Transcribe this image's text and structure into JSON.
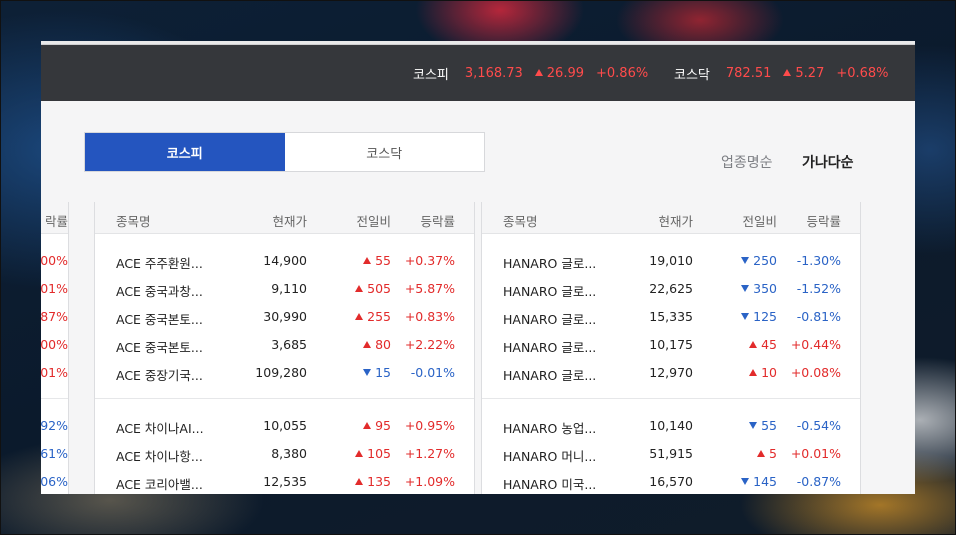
{
  "ticker": [
    {
      "name": "코스피",
      "value": "3,168.73",
      "change": "26.99",
      "rate": "+0.86%"
    },
    {
      "name": "코스닥",
      "value": "782.51",
      "change": "5.27",
      "rate": "+0.68%"
    }
  ],
  "tabs": [
    {
      "label": "코스피",
      "active": true
    },
    {
      "label": "코스닥",
      "active": false
    }
  ],
  "sort": {
    "industry": "업종명순",
    "alpha": "가나다순"
  },
  "left_partial": {
    "header": "락률",
    "group1": [
      {
        "rate": ".00%",
        "dir": "up"
      },
      {
        "rate": ".01%",
        "dir": "up"
      },
      {
        "rate": ".87%",
        "dir": "up"
      },
      {
        "rate": ".00%",
        "dir": "up"
      },
      {
        "rate": ".01%",
        "dir": "up"
      }
    ],
    "group2": [
      {
        "rate": ".92%",
        "dir": "down"
      },
      {
        "rate": ".61%",
        "dir": "down"
      },
      {
        "rate": ".06%",
        "dir": "down"
      }
    ]
  },
  "columns": {
    "name": "종목명",
    "price": "현재가",
    "change": "전일비",
    "rate": "등락률"
  },
  "panel_mid": {
    "group1": [
      {
        "name": "ACE 주주환원...",
        "price": "14,900",
        "change": "55",
        "rate": "+0.37%",
        "dir": "up"
      },
      {
        "name": "ACE 중국과창...",
        "price": "9,110",
        "change": "505",
        "rate": "+5.87%",
        "dir": "up"
      },
      {
        "name": "ACE 중국본토...",
        "price": "30,990",
        "change": "255",
        "rate": "+0.83%",
        "dir": "up"
      },
      {
        "name": "ACE 중국본토...",
        "price": "3,685",
        "change": "80",
        "rate": "+2.22%",
        "dir": "up"
      },
      {
        "name": "ACE 중장기국...",
        "price": "109,280",
        "change": "15",
        "rate": "-0.01%",
        "dir": "down"
      }
    ],
    "group2": [
      {
        "name": "ACE 차이나AI...",
        "price": "10,055",
        "change": "95",
        "rate": "+0.95%",
        "dir": "up"
      },
      {
        "name": "ACE 차이나항...",
        "price": "8,380",
        "change": "105",
        "rate": "+1.27%",
        "dir": "up"
      },
      {
        "name": "ACE 코리아밸...",
        "price": "12,535",
        "change": "135",
        "rate": "+1.09%",
        "dir": "up"
      }
    ]
  },
  "panel_right": {
    "group1": [
      {
        "name": "HANARO 글로...",
        "price": "19,010",
        "change": "250",
        "rate": "-1.30%",
        "dir": "down"
      },
      {
        "name": "HANARO 글로...",
        "price": "22,625",
        "change": "350",
        "rate": "-1.52%",
        "dir": "down"
      },
      {
        "name": "HANARO 글로...",
        "price": "15,335",
        "change": "125",
        "rate": "-0.81%",
        "dir": "down"
      },
      {
        "name": "HANARO 글로...",
        "price": "10,175",
        "change": "45",
        "rate": "+0.44%",
        "dir": "up"
      },
      {
        "name": "HANARO 글로...",
        "price": "12,970",
        "change": "10",
        "rate": "+0.08%",
        "dir": "up"
      }
    ],
    "group2": [
      {
        "name": "HANARO 농업...",
        "price": "10,140",
        "change": "55",
        "rate": "-0.54%",
        "dir": "down"
      },
      {
        "name": "HANARO 머니...",
        "price": "51,915",
        "change": "5",
        "rate": "+0.01%",
        "dir": "up"
      },
      {
        "name": "HANARO 미국...",
        "price": "16,570",
        "change": "145",
        "rate": "-0.87%",
        "dir": "down"
      }
    ]
  },
  "colors": {
    "up": "#e22b2b",
    "down": "#2a63c6",
    "tab_active": "#2455bf",
    "ticker_bg": "#35373b"
  }
}
